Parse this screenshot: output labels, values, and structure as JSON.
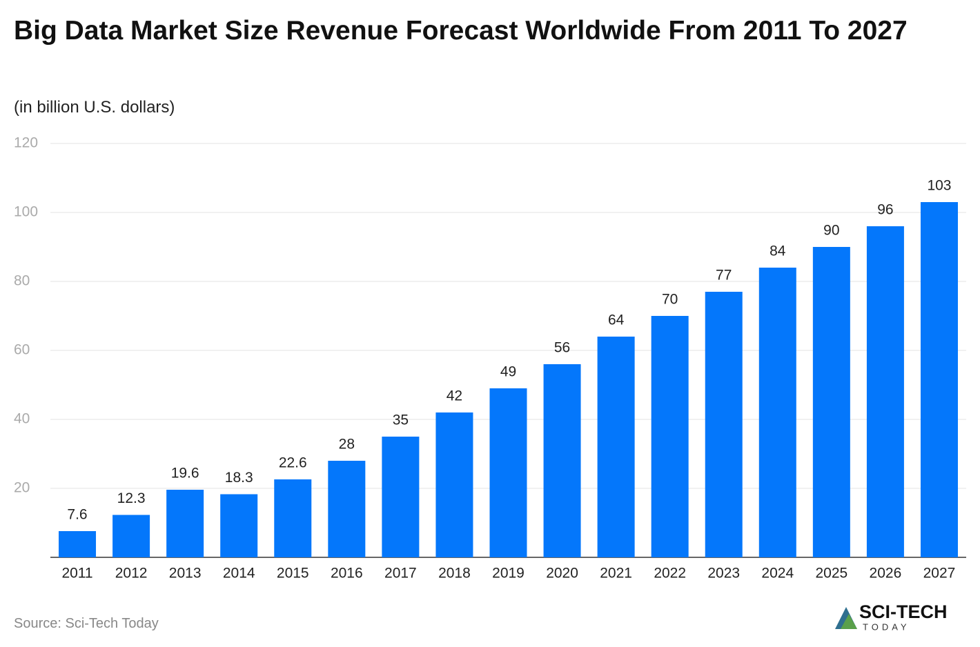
{
  "chart_data": {
    "type": "bar",
    "title": "Big Data Market Size Revenue Forecast Worldwide From 2011 To 2027",
    "subtitle": "(in billion U.S. dollars)",
    "categories": [
      "2011",
      "2012",
      "2013",
      "2014",
      "2015",
      "2016",
      "2017",
      "2018",
      "2019",
      "2020",
      "2021",
      "2022",
      "2023",
      "2024",
      "2025",
      "2026",
      "2027"
    ],
    "values": [
      7.6,
      12.3,
      19.6,
      18.3,
      22.6,
      28,
      35,
      42,
      49,
      56,
      64,
      70,
      77,
      84,
      90,
      96,
      103
    ],
    "color": "#0477fb",
    "ylim": [
      0,
      120
    ],
    "yticks": [
      20,
      40,
      60,
      80,
      100,
      120
    ],
    "grid": true,
    "source": "Source: Sci-Tech Today",
    "logo": {
      "name": "SCI-TECH",
      "tagline": "TODAY"
    }
  }
}
